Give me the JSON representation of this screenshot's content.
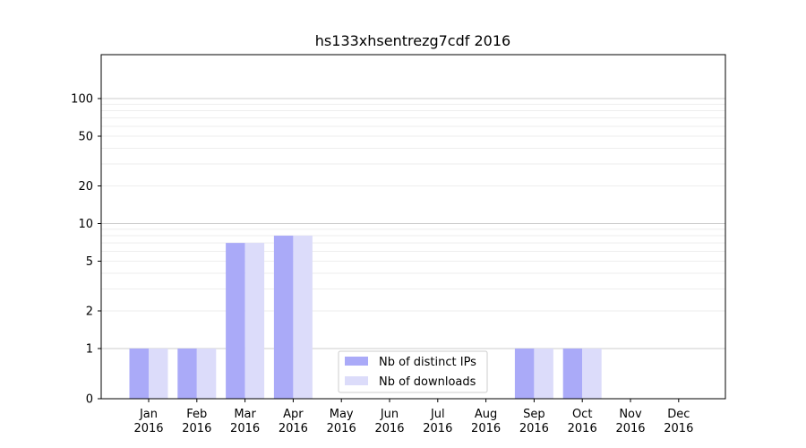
{
  "chart_data": {
    "type": "bar",
    "title": "hs133xhsentrezg7cdf 2016",
    "xlabel": "",
    "ylabel": "",
    "yscale": "symlog",
    "ylim": [
      0,
      120
    ],
    "y_ticks": [
      0,
      1,
      2,
      5,
      10,
      20,
      50,
      100
    ],
    "grid": "horizontal",
    "legend_position": "bottom-center",
    "categories": [
      [
        "Jan",
        "2016"
      ],
      [
        "Feb",
        "2016"
      ],
      [
        "Mar",
        "2016"
      ],
      [
        "Apr",
        "2016"
      ],
      [
        "May",
        "2016"
      ],
      [
        "Jun",
        "2016"
      ],
      [
        "Jul",
        "2016"
      ],
      [
        "Aug",
        "2016"
      ],
      [
        "Sep",
        "2016"
      ],
      [
        "Oct",
        "2016"
      ],
      [
        "Nov",
        "2016"
      ],
      [
        "Dec",
        "2016"
      ]
    ],
    "series": [
      {
        "name": "Nb of distinct IPs",
        "color": "#aaaaf8",
        "values": [
          1,
          1,
          7,
          8,
          0,
          0,
          0,
          0,
          1,
          1,
          0,
          0
        ]
      },
      {
        "name": "Nb of downloads",
        "color": "#dcdcfa",
        "values": [
          1,
          1,
          7,
          8,
          0,
          0,
          0,
          0,
          1,
          1,
          0,
          0
        ]
      }
    ]
  }
}
